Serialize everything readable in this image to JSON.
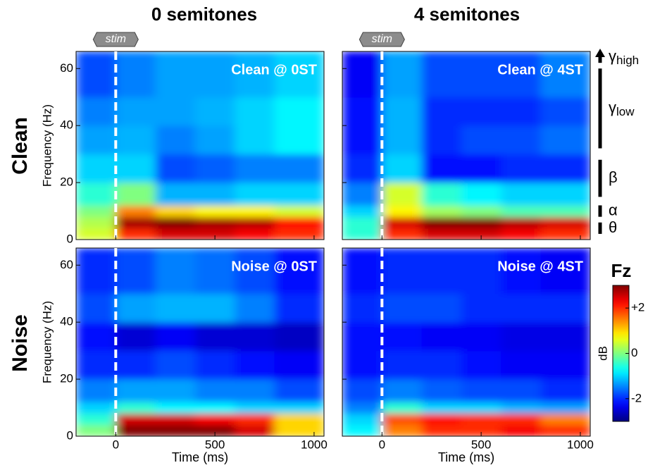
{
  "column_titles": [
    "0 semitones",
    "4 semitones"
  ],
  "row_labels": [
    "Clean",
    "Noise"
  ],
  "stim": {
    "label": "stim",
    "time": 0
  },
  "bands": [
    {
      "symbol": "γ",
      "sub": "high",
      "range": [
        62,
        66
      ]
    },
    {
      "symbol": "γ",
      "sub": "low",
      "range": [
        32,
        60
      ]
    },
    {
      "symbol": "β",
      "range": [
        15,
        28
      ]
    },
    {
      "symbol": "α",
      "range": [
        8,
        12
      ]
    },
    {
      "symbol": "θ",
      "range": [
        2,
        6
      ]
    }
  ],
  "colorbar": {
    "title": "Fz",
    "label": "dB",
    "clim": [
      -3,
      3
    ],
    "ticks": [
      {
        "value": 2,
        "label": "+2"
      },
      0,
      -2
    ]
  },
  "chart_data": [
    {
      "type": "heatmap",
      "title": "Clean @ 0ST",
      "ylabel": "Frequency (Hz)",
      "x_bins": [
        -200,
        0,
        200,
        400,
        600,
        800,
        1050
      ],
      "y_bins": [
        0,
        4,
        8,
        12,
        20,
        30,
        40,
        50,
        66
      ],
      "values": [
        [
          0.5,
          2,
          2.5,
          2.5,
          2.3,
          2
        ],
        [
          0.3,
          2.8,
          3,
          2.8,
          2.7,
          2.2
        ],
        [
          0,
          1.5,
          1,
          0.8,
          0.8,
          0.5
        ],
        [
          -0.5,
          0,
          -1.2,
          -1.2,
          -1,
          -1
        ],
        [
          -1,
          -1,
          -1.8,
          -1.7,
          -1.5,
          -1.5
        ],
        [
          -1.3,
          -1.2,
          -1.5,
          -1.3,
          -1,
          -0.8
        ],
        [
          -1.5,
          -1.3,
          -1.3,
          -1.2,
          -1,
          -0.8
        ],
        [
          -1.8,
          -1.5,
          -1.3,
          -1.3,
          -1.2,
          -1
        ]
      ],
      "xlim": [
        -200,
        1050
      ],
      "ylim": [
        0,
        66
      ],
      "xticks": [
        0,
        500,
        1000
      ],
      "yticks": [
        0,
        20,
        40,
        60
      ]
    },
    {
      "type": "heatmap",
      "title": "Clean @ 4ST",
      "x_bins": [
        -200,
        0,
        200,
        400,
        600,
        800,
        1050
      ],
      "y_bins": [
        0,
        4,
        8,
        12,
        20,
        30,
        40,
        50,
        66
      ],
      "values": [
        [
          -0.5,
          2,
          2.5,
          2.5,
          2.3,
          2
        ],
        [
          -0.5,
          2.5,
          3,
          3,
          2.7,
          2.5
        ],
        [
          -1,
          0.8,
          0.2,
          0,
          -0.3,
          -0.3
        ],
        [
          -1.5,
          0.5,
          -0.5,
          -0.8,
          -1,
          -1
        ],
        [
          -2,
          -1,
          -2.2,
          -2.2,
          -2,
          -2
        ],
        [
          -2.2,
          -1.2,
          -2,
          -1.8,
          -1.8,
          -1.6
        ],
        [
          -2.2,
          -1.2,
          -2,
          -2,
          -2,
          -1.8
        ],
        [
          -2.3,
          -1.3,
          -1.8,
          -1.8,
          -1.8,
          -1.5
        ]
      ],
      "xlim": [
        -200,
        1050
      ],
      "ylim": [
        0,
        66
      ],
      "xticks": [
        0,
        500,
        1000
      ],
      "yticks": [
        0,
        20,
        40,
        60
      ]
    },
    {
      "type": "heatmap",
      "title": "Noise @ 0ST",
      "xlabel": "Time (ms)",
      "ylabel": "Frequency (Hz)",
      "x_bins": [
        -200,
        0,
        200,
        400,
        600,
        800,
        1050
      ],
      "y_bins": [
        0,
        4,
        8,
        12,
        20,
        30,
        40,
        50,
        66
      ],
      "values": [
        [
          0,
          3,
          3,
          3,
          2.5,
          1
        ],
        [
          -0.5,
          2.5,
          2.5,
          2.3,
          2,
          1
        ],
        [
          -1,
          -0.5,
          -0.8,
          -0.8,
          -1,
          -1
        ],
        [
          -1.5,
          -1.3,
          -1.3,
          -1.5,
          -1.5,
          -1.8
        ],
        [
          -2,
          -2,
          -1.8,
          -2,
          -2.2,
          -2.3
        ],
        [
          -2.2,
          -2.5,
          -2.3,
          -2.5,
          -2.5,
          -2.6
        ],
        [
          -1.8,
          -1.3,
          -1.2,
          -1.2,
          -1.5,
          -2
        ],
        [
          -2,
          -1.8,
          -1.5,
          -1.6,
          -1.8,
          -2.2
        ]
      ],
      "xlim": [
        -200,
        1050
      ],
      "ylim": [
        0,
        66
      ],
      "xticks": [
        0,
        500,
        1000
      ],
      "yticks": [
        0,
        20,
        40,
        60
      ]
    },
    {
      "type": "heatmap",
      "title": "Noise @ 4ST",
      "xlabel": "Time (ms)",
      "x_bins": [
        -200,
        0,
        200,
        400,
        600,
        800,
        1050
      ],
      "y_bins": [
        0,
        4,
        8,
        12,
        20,
        30,
        40,
        50,
        66
      ],
      "values": [
        [
          -0.8,
          1.5,
          2,
          2,
          2.3,
          2
        ],
        [
          -1,
          1.8,
          2.2,
          2,
          2,
          1.5
        ],
        [
          -1.5,
          -0.5,
          -1,
          -1,
          -1.2,
          -1.3
        ],
        [
          -1.8,
          -1.5,
          -1.7,
          -1.8,
          -1.8,
          -2
        ],
        [
          -2.2,
          -2,
          -2,
          -2.2,
          -2.3,
          -2.3
        ],
        [
          -2.2,
          -2.2,
          -2.3,
          -2.3,
          -2.4,
          -2.4
        ],
        [
          -2,
          -1.8,
          -1.8,
          -2,
          -2,
          -2
        ],
        [
          -2.2,
          -2,
          -2,
          -2,
          -2.2,
          -2.3
        ]
      ],
      "xlim": [
        -200,
        1050
      ],
      "ylim": [
        0,
        66
      ],
      "xticks": [
        0,
        500,
        1000
      ],
      "yticks": [
        0,
        20,
        40,
        60
      ]
    }
  ]
}
